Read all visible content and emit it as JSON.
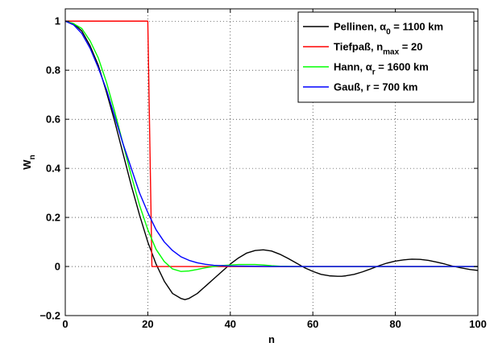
{
  "chart_data": {
    "type": "line",
    "xlabel": "n",
    "ylabel": {
      "main": "W",
      "sub": "n"
    },
    "xlim": [
      0,
      100
    ],
    "ylim": [
      -0.2,
      1.05
    ],
    "xticks": [
      "0",
      "20",
      "40",
      "60",
      "80",
      "100"
    ],
    "yticks": [
      "−0.2",
      "0",
      "0.2",
      "0.4",
      "0.6",
      "0.8",
      "1"
    ],
    "grid": true,
    "legend_position": "top-right",
    "series": [
      {
        "name": "Pellinen, α0 = 1100 km",
        "legend": {
          "pre": "Pellinen, α",
          "sub": "0",
          "post": " = 1100 km"
        },
        "color": "#000000",
        "points": [
          [
            0,
            1
          ],
          [
            2,
            0.99
          ],
          [
            4,
            0.96
          ],
          [
            6,
            0.9
          ],
          [
            8,
            0.82
          ],
          [
            10,
            0.71
          ],
          [
            12,
            0.59
          ],
          [
            14,
            0.46
          ],
          [
            16,
            0.33
          ],
          [
            18,
            0.21
          ],
          [
            20,
            0.1
          ],
          [
            22,
            0.01
          ],
          [
            24,
            -0.06
          ],
          [
            26,
            -0.11
          ],
          [
            28,
            -0.13
          ],
          [
            29,
            -0.135
          ],
          [
            30,
            -0.13
          ],
          [
            32,
            -0.11
          ],
          [
            34,
            -0.08
          ],
          [
            36,
            -0.05
          ],
          [
            38,
            -0.02
          ],
          [
            40,
            0.01
          ],
          [
            42,
            0.035
          ],
          [
            44,
            0.055
          ],
          [
            46,
            0.065
          ],
          [
            48,
            0.068
          ],
          [
            50,
            0.063
          ],
          [
            52,
            0.05
          ],
          [
            54,
            0.033
          ],
          [
            56,
            0.014
          ],
          [
            58,
            -0.005
          ],
          [
            60,
            -0.02
          ],
          [
            62,
            -0.032
          ],
          [
            64,
            -0.038
          ],
          [
            66,
            -0.04
          ],
          [
            67,
            -0.04
          ],
          [
            68,
            -0.038
          ],
          [
            70,
            -0.032
          ],
          [
            72,
            -0.022
          ],
          [
            74,
            -0.01
          ],
          [
            76,
            0.003
          ],
          [
            78,
            0.014
          ],
          [
            80,
            0.022
          ],
          [
            82,
            0.027
          ],
          [
            84,
            0.03
          ],
          [
            86,
            0.029
          ],
          [
            88,
            0.025
          ],
          [
            90,
            0.018
          ],
          [
            92,
            0.01
          ],
          [
            94,
            0.001
          ],
          [
            96,
            -0.006
          ],
          [
            98,
            -0.012
          ],
          [
            100,
            -0.016
          ]
        ]
      },
      {
        "name": "Tiefpaß, nmax = 20",
        "legend": {
          "pre": "Tiefpaß, n",
          "sub": "max",
          "post": " = 20"
        },
        "color": "#ff0000",
        "points": [
          [
            0,
            1
          ],
          [
            20,
            1
          ],
          [
            21,
            0
          ],
          [
            100,
            0
          ]
        ]
      },
      {
        "name": "Hann, αr = 1600 km",
        "legend": {
          "pre": "Hann, α",
          "sub": "r",
          "post": " = 1600 km"
        },
        "color": "#00ff00",
        "points": [
          [
            0,
            1
          ],
          [
            2,
            0.99
          ],
          [
            4,
            0.97
          ],
          [
            6,
            0.92
          ],
          [
            8,
            0.85
          ],
          [
            10,
            0.75
          ],
          [
            12,
            0.63
          ],
          [
            14,
            0.5
          ],
          [
            16,
            0.37
          ],
          [
            18,
            0.25
          ],
          [
            20,
            0.15
          ],
          [
            22,
            0.07
          ],
          [
            24,
            0.02
          ],
          [
            26,
            -0.01
          ],
          [
            28,
            -0.02
          ],
          [
            30,
            -0.018
          ],
          [
            32,
            -0.012
          ],
          [
            34,
            -0.005
          ],
          [
            36,
            0
          ],
          [
            38,
            0.004
          ],
          [
            40,
            0.006
          ],
          [
            42,
            0.008
          ],
          [
            44,
            0.008
          ],
          [
            46,
            0.008
          ],
          [
            48,
            0.006
          ],
          [
            50,
            0.003
          ],
          [
            52,
            0.001
          ],
          [
            56,
            0
          ],
          [
            100,
            0
          ]
        ]
      },
      {
        "name": "Gauß, r = 700 km",
        "legend": {
          "pre": "Gauß, r = 700 km",
          "sub": "",
          "post": ""
        },
        "color": "#0000ff",
        "points": [
          [
            0,
            1
          ],
          [
            2,
            0.985
          ],
          [
            4,
            0.95
          ],
          [
            6,
            0.89
          ],
          [
            8,
            0.81
          ],
          [
            10,
            0.72
          ],
          [
            12,
            0.61
          ],
          [
            14,
            0.5
          ],
          [
            16,
            0.4
          ],
          [
            18,
            0.3
          ],
          [
            20,
            0.22
          ],
          [
            22,
            0.15
          ],
          [
            24,
            0.1
          ],
          [
            26,
            0.065
          ],
          [
            28,
            0.04
          ],
          [
            30,
            0.025
          ],
          [
            32,
            0.015
          ],
          [
            34,
            0.009
          ],
          [
            36,
            0.005
          ],
          [
            40,
            0.002
          ],
          [
            45,
            0.001
          ],
          [
            50,
            0
          ],
          [
            100,
            0
          ]
        ]
      }
    ]
  }
}
